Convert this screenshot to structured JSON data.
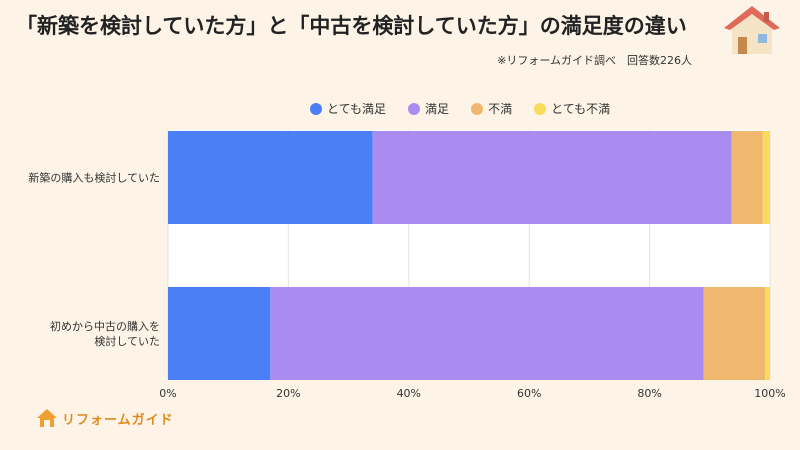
{
  "title": "「新築を検討していた方」と「中古を検討していた方」の満足度の違い",
  "source": "※リフォームガイド調べ　回答数226人",
  "logo_text": "リフォームガイド",
  "icons": {
    "house": "house-icon",
    "logo": "house-logo-icon"
  },
  "chart_data": {
    "type": "bar",
    "orientation": "horizontal",
    "stacked": true,
    "categories": [
      "新築の購入も検討していた",
      "初めから中古の購入を\n検討していた"
    ],
    "series": [
      {
        "name": "とても満足",
        "color": "#4a7ff5",
        "values": [
          34,
          17
        ]
      },
      {
        "name": "満足",
        "color": "#aa8cf0",
        "values": [
          59.6,
          72
        ]
      },
      {
        "name": "不満",
        "color": "#f0b86e",
        "values": [
          5.2,
          10.2
        ]
      },
      {
        "name": "とても不満",
        "color": "#f7dc5c",
        "values": [
          1.2,
          0.8
        ]
      }
    ],
    "xlim": [
      0,
      100
    ],
    "xticks": [
      "0%",
      "20%",
      "40%",
      "60%",
      "80%",
      "100%"
    ],
    "grid": true,
    "legend": "top-center"
  }
}
